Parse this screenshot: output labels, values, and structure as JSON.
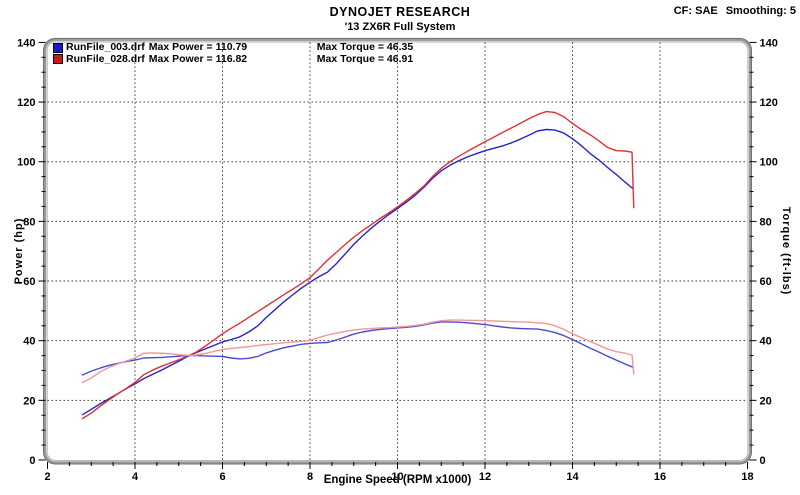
{
  "header": {
    "title": "DYNOJET RESEARCH",
    "subtitle": "'13 ZX6R Full System",
    "correction": "CF: SAE",
    "smoothing": "Smoothing: 5"
  },
  "legend": [
    {
      "file": "RunFile_003.drf",
      "max_power": "Max Power = 110.79",
      "max_torque": "Max Torque = 46.35",
      "color": "#1a1acc"
    },
    {
      "file": "RunFile_028.drf",
      "max_power": "Max Power = 116.82",
      "max_torque": "Max Torque = 46.91",
      "color": "#cc1a1a"
    }
  ],
  "axes": {
    "x": {
      "min": 2,
      "max": 18,
      "major_ticks": [
        2,
        4,
        6,
        8,
        10,
        12,
        14,
        16,
        18
      ],
      "minor_step": 0.5,
      "label": "Engine Speed (RPM x1000)"
    },
    "y_left": {
      "min": 0,
      "max": 140,
      "major_ticks": [
        0,
        20,
        40,
        60,
        80,
        100,
        120,
        140
      ],
      "minor_step": 5,
      "label": "Power (hp)"
    },
    "y_right": {
      "min": 0,
      "max": 140,
      "major_ticks": [
        0,
        20,
        40,
        60,
        80,
        100,
        120,
        140
      ],
      "minor_step": 5,
      "label": "Torque (ft-lbs)"
    }
  },
  "style": {
    "grid_color": "#3a3a3a",
    "frame_color": "#9a9a9a",
    "frame_hilite": "#d6d6d6",
    "frame_edge": "#707070"
  },
  "chart_data": {
    "type": "line",
    "title": "DYNOJET RESEARCH - '13 ZX6R Full System",
    "xlabel": "Engine Speed (RPM x1000)",
    "ylabel_left": "Power (hp)",
    "ylabel_right": "Torque (ft-lbs)",
    "xlim": [
      2,
      18
    ],
    "ylim": [
      0,
      140
    ],
    "grid": "dashed, vertical every 2 RPM, horizontal every 20 units",
    "legend_position": "top-left inside plot",
    "series": [
      {
        "name": "RunFile_003.drf Power",
        "unit": "hp",
        "color": "#2424cc",
        "max": 110.79,
        "points": [
          [
            2.8,
            15.2
          ],
          [
            3.0,
            17.0
          ],
          [
            3.2,
            18.8
          ],
          [
            3.4,
            20.5
          ],
          [
            3.6,
            22.2
          ],
          [
            3.8,
            23.9
          ],
          [
            4.0,
            25.5
          ],
          [
            4.2,
            27.3
          ],
          [
            4.4,
            28.7
          ],
          [
            4.6,
            30.1
          ],
          [
            4.8,
            31.6
          ],
          [
            5.0,
            33.1
          ],
          [
            5.2,
            34.7
          ],
          [
            5.4,
            36.0
          ],
          [
            5.6,
            37.2
          ],
          [
            5.8,
            38.4
          ],
          [
            6.0,
            39.6
          ],
          [
            6.2,
            40.4
          ],
          [
            6.4,
            41.3
          ],
          [
            6.6,
            42.9
          ],
          [
            6.8,
            44.9
          ],
          [
            7.0,
            47.8
          ],
          [
            7.2,
            50.4
          ],
          [
            7.4,
            53.0
          ],
          [
            7.6,
            55.3
          ],
          [
            7.8,
            57.6
          ],
          [
            8.0,
            59.6
          ],
          [
            8.2,
            61.4
          ],
          [
            8.4,
            63.0
          ],
          [
            8.6,
            65.8
          ],
          [
            8.8,
            69.0
          ],
          [
            9.0,
            72.3
          ],
          [
            9.2,
            75.1
          ],
          [
            9.4,
            77.7
          ],
          [
            9.6,
            80.1
          ],
          [
            9.8,
            82.3
          ],
          [
            10.0,
            84.3
          ],
          [
            10.2,
            86.4
          ],
          [
            10.4,
            88.7
          ],
          [
            10.6,
            91.4
          ],
          [
            10.8,
            94.4
          ],
          [
            11.0,
            97.0
          ],
          [
            11.2,
            98.8
          ],
          [
            11.4,
            100.3
          ],
          [
            11.6,
            101.6
          ],
          [
            11.8,
            102.7
          ],
          [
            12.0,
            103.7
          ],
          [
            12.2,
            104.5
          ],
          [
            12.4,
            105.3
          ],
          [
            12.6,
            106.3
          ],
          [
            12.8,
            107.5
          ],
          [
            13.0,
            108.9
          ],
          [
            13.2,
            110.3
          ],
          [
            13.4,
            110.8
          ],
          [
            13.6,
            110.6
          ],
          [
            13.8,
            109.6
          ],
          [
            14.0,
            107.7
          ],
          [
            14.2,
            105.4
          ],
          [
            14.4,
            102.8
          ],
          [
            14.6,
            100.6
          ],
          [
            14.8,
            98.1
          ],
          [
            15.0,
            95.7
          ],
          [
            15.2,
            93.2
          ],
          [
            15.38,
            91.0
          ]
        ]
      },
      {
        "name": "RunFile_028.drf Power",
        "unit": "hp",
        "color": "#e03232",
        "max": 116.82,
        "points": [
          [
            2.8,
            13.9
          ],
          [
            3.0,
            15.7
          ],
          [
            3.2,
            18.0
          ],
          [
            3.4,
            20.1
          ],
          [
            3.6,
            22.1
          ],
          [
            3.8,
            24.0
          ],
          [
            4.0,
            26.0
          ],
          [
            4.2,
            28.6
          ],
          [
            4.4,
            30.1
          ],
          [
            4.6,
            31.4
          ],
          [
            4.8,
            32.5
          ],
          [
            5.0,
            33.6
          ],
          [
            5.2,
            34.8
          ],
          [
            5.4,
            36.2
          ],
          [
            5.6,
            38.1
          ],
          [
            5.8,
            40.2
          ],
          [
            6.0,
            42.3
          ],
          [
            6.2,
            44.2
          ],
          [
            6.4,
            45.9
          ],
          [
            6.6,
            47.8
          ],
          [
            6.8,
            49.7
          ],
          [
            7.0,
            51.6
          ],
          [
            7.2,
            53.5
          ],
          [
            7.4,
            55.4
          ],
          [
            7.6,
            57.2
          ],
          [
            7.8,
            59.1
          ],
          [
            8.0,
            61.1
          ],
          [
            8.2,
            64.0
          ],
          [
            8.4,
            67.0
          ],
          [
            8.6,
            69.6
          ],
          [
            8.8,
            72.2
          ],
          [
            9.0,
            74.7
          ],
          [
            9.2,
            76.9
          ],
          [
            9.4,
            78.9
          ],
          [
            9.6,
            81.0
          ],
          [
            9.8,
            82.8
          ],
          [
            10.0,
            84.9
          ],
          [
            10.2,
            87.0
          ],
          [
            10.4,
            89.3
          ],
          [
            10.6,
            91.8
          ],
          [
            10.8,
            95.0
          ],
          [
            11.0,
            97.8
          ],
          [
            11.2,
            100.0
          ],
          [
            11.4,
            101.8
          ],
          [
            11.6,
            103.5
          ],
          [
            11.8,
            105.1
          ],
          [
            12.0,
            106.7
          ],
          [
            12.2,
            108.2
          ],
          [
            12.4,
            109.8
          ],
          [
            12.6,
            111.3
          ],
          [
            12.8,
            112.8
          ],
          [
            13.0,
            114.4
          ],
          [
            13.2,
            115.8
          ],
          [
            13.4,
            116.8
          ],
          [
            13.6,
            116.5
          ],
          [
            13.8,
            115.1
          ],
          [
            14.0,
            112.8
          ],
          [
            14.2,
            110.8
          ],
          [
            14.4,
            109.1
          ],
          [
            14.6,
            107.0
          ],
          [
            14.8,
            104.8
          ],
          [
            15.0,
            103.7
          ],
          [
            15.2,
            103.6
          ],
          [
            15.36,
            103.2
          ],
          [
            15.4,
            84.6
          ]
        ]
      },
      {
        "name": "RunFile_003.drf Torque",
        "unit": "ft-lbs",
        "color": "#4a4ad8",
        "max": 46.35,
        "points": [
          [
            2.8,
            28.5
          ],
          [
            3.0,
            29.8
          ],
          [
            3.2,
            30.8
          ],
          [
            3.4,
            31.7
          ],
          [
            3.6,
            32.4
          ],
          [
            3.8,
            33.0
          ],
          [
            4.0,
            33.5
          ],
          [
            4.2,
            34.2
          ],
          [
            4.4,
            34.3
          ],
          [
            4.6,
            34.4
          ],
          [
            4.8,
            34.6
          ],
          [
            5.0,
            34.8
          ],
          [
            5.2,
            35.0
          ],
          [
            5.4,
            35.0
          ],
          [
            5.6,
            34.9
          ],
          [
            5.8,
            34.8
          ],
          [
            6.0,
            34.7
          ],
          [
            6.2,
            34.2
          ],
          [
            6.4,
            33.9
          ],
          [
            6.6,
            34.1
          ],
          [
            6.8,
            34.7
          ],
          [
            7.0,
            35.9
          ],
          [
            7.2,
            36.8
          ],
          [
            7.4,
            37.6
          ],
          [
            7.6,
            38.2
          ],
          [
            7.8,
            38.8
          ],
          [
            8.0,
            39.1
          ],
          [
            8.2,
            39.3
          ],
          [
            8.4,
            39.4
          ],
          [
            8.6,
            40.2
          ],
          [
            8.8,
            41.2
          ],
          [
            9.0,
            42.2
          ],
          [
            9.2,
            42.9
          ],
          [
            9.4,
            43.4
          ],
          [
            9.6,
            43.8
          ],
          [
            9.8,
            44.1
          ],
          [
            10.0,
            44.3
          ],
          [
            10.2,
            44.5
          ],
          [
            10.4,
            44.8
          ],
          [
            10.6,
            45.3
          ],
          [
            10.8,
            45.9
          ],
          [
            11.0,
            46.3
          ],
          [
            11.2,
            46.3
          ],
          [
            11.4,
            46.2
          ],
          [
            11.6,
            46.0
          ],
          [
            11.8,
            45.7
          ],
          [
            12.0,
            45.4
          ],
          [
            12.2,
            45.0
          ],
          [
            12.4,
            44.6
          ],
          [
            12.6,
            44.3
          ],
          [
            12.8,
            44.1
          ],
          [
            13.0,
            44.0
          ],
          [
            13.2,
            43.9
          ],
          [
            13.4,
            43.4
          ],
          [
            13.6,
            42.7
          ],
          [
            13.8,
            41.7
          ],
          [
            14.0,
            40.4
          ],
          [
            14.2,
            39.0
          ],
          [
            14.4,
            37.5
          ],
          [
            14.6,
            36.2
          ],
          [
            14.8,
            34.8
          ],
          [
            15.0,
            33.5
          ],
          [
            15.2,
            32.2
          ],
          [
            15.38,
            31.1
          ]
        ]
      },
      {
        "name": "RunFile_028.drf Torque",
        "unit": "ft-lbs",
        "color": "#f09898",
        "max": 46.91,
        "points": [
          [
            2.8,
            26.0
          ],
          [
            3.0,
            27.5
          ],
          [
            3.2,
            29.5
          ],
          [
            3.4,
            31.0
          ],
          [
            3.6,
            32.2
          ],
          [
            3.8,
            33.2
          ],
          [
            4.0,
            34.2
          ],
          [
            4.2,
            35.8
          ],
          [
            4.4,
            35.9
          ],
          [
            4.6,
            35.8
          ],
          [
            4.8,
            35.6
          ],
          [
            5.0,
            35.3
          ],
          [
            5.2,
            35.1
          ],
          [
            5.4,
            35.2
          ],
          [
            5.6,
            35.7
          ],
          [
            5.8,
            36.4
          ],
          [
            6.0,
            37.0
          ],
          [
            6.2,
            37.4
          ],
          [
            6.4,
            37.7
          ],
          [
            6.6,
            38.0
          ],
          [
            6.8,
            38.4
          ],
          [
            7.0,
            38.7
          ],
          [
            7.2,
            39.0
          ],
          [
            7.4,
            39.3
          ],
          [
            7.6,
            39.5
          ],
          [
            7.8,
            39.8
          ],
          [
            8.0,
            40.1
          ],
          [
            8.2,
            41.0
          ],
          [
            8.4,
            41.9
          ],
          [
            8.6,
            42.5
          ],
          [
            8.8,
            43.1
          ],
          [
            9.0,
            43.6
          ],
          [
            9.2,
            43.9
          ],
          [
            9.4,
            44.1
          ],
          [
            9.6,
            44.3
          ],
          [
            9.8,
            44.4
          ],
          [
            10.0,
            44.6
          ],
          [
            10.2,
            44.8
          ],
          [
            10.4,
            45.1
          ],
          [
            10.6,
            45.5
          ],
          [
            10.8,
            46.2
          ],
          [
            11.0,
            46.7
          ],
          [
            11.2,
            46.9
          ],
          [
            11.4,
            46.9
          ],
          [
            11.6,
            46.85
          ],
          [
            11.8,
            46.8
          ],
          [
            12.0,
            46.7
          ],
          [
            12.2,
            46.6
          ],
          [
            12.4,
            46.5
          ],
          [
            12.6,
            46.4
          ],
          [
            12.8,
            46.3
          ],
          [
            13.0,
            46.2
          ],
          [
            13.2,
            46.0
          ],
          [
            13.4,
            45.8
          ],
          [
            13.6,
            45.0
          ],
          [
            13.8,
            43.8
          ],
          [
            14.0,
            42.3
          ],
          [
            14.2,
            41.0
          ],
          [
            14.4,
            39.8
          ],
          [
            14.6,
            38.5
          ],
          [
            14.8,
            37.2
          ],
          [
            15.0,
            36.3
          ],
          [
            15.2,
            35.8
          ],
          [
            15.36,
            35.2
          ],
          [
            15.4,
            28.9
          ]
        ]
      }
    ]
  }
}
